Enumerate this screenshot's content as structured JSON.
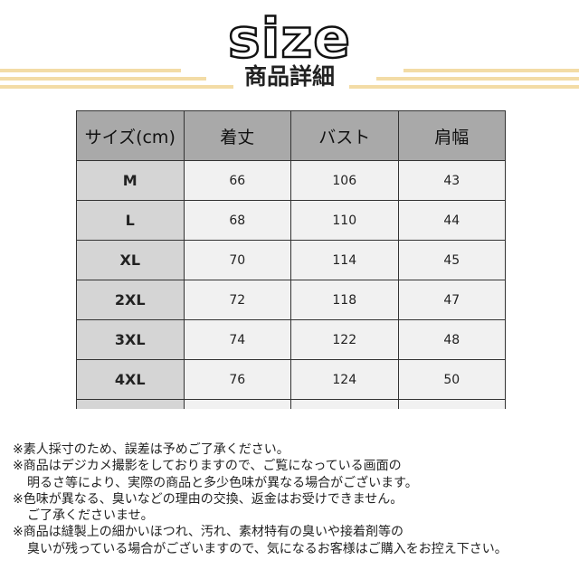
{
  "header": {
    "title": "size",
    "subtitle": "商品詳細",
    "line_color": "#f3dca6"
  },
  "table": {
    "columns": [
      "サイズ(cm)",
      "着丈",
      "バスト",
      "肩幅"
    ],
    "rows": [
      [
        "M",
        "66",
        "106",
        "43"
      ],
      [
        "L",
        "68",
        "110",
        "44"
      ],
      [
        "XL",
        "70",
        "114",
        "45"
      ],
      [
        "2XL",
        "72",
        "118",
        "47"
      ],
      [
        "3XL",
        "74",
        "122",
        "48"
      ],
      [
        "4XL",
        "76",
        "124",
        "50"
      ]
    ]
  },
  "notes": [
    {
      "text": "※素人採寸のため、誤差は予めご了承ください。",
      "indent": false
    },
    {
      "text": "※商品はデジカメ撮影をしておりますので、ご覧になっている画面の",
      "indent": false
    },
    {
      "text": "明るさ等により、実際の商品と多少色味が異なる場合がございます。",
      "indent": true
    },
    {
      "text": "※色味が異なる、臭いなどの理由の交換、返金はお受けできません。",
      "indent": false
    },
    {
      "text": "ご了承くださいませ。",
      "indent": true
    },
    {
      "text": "※商品は縫製上の細かいほつれ、汚れ、素材特有の臭いや接着剤等の",
      "indent": false
    },
    {
      "text": "臭いが残っている場合がございますので、気になるお客様はご購入をお控え下さい。",
      "indent": true
    }
  ]
}
